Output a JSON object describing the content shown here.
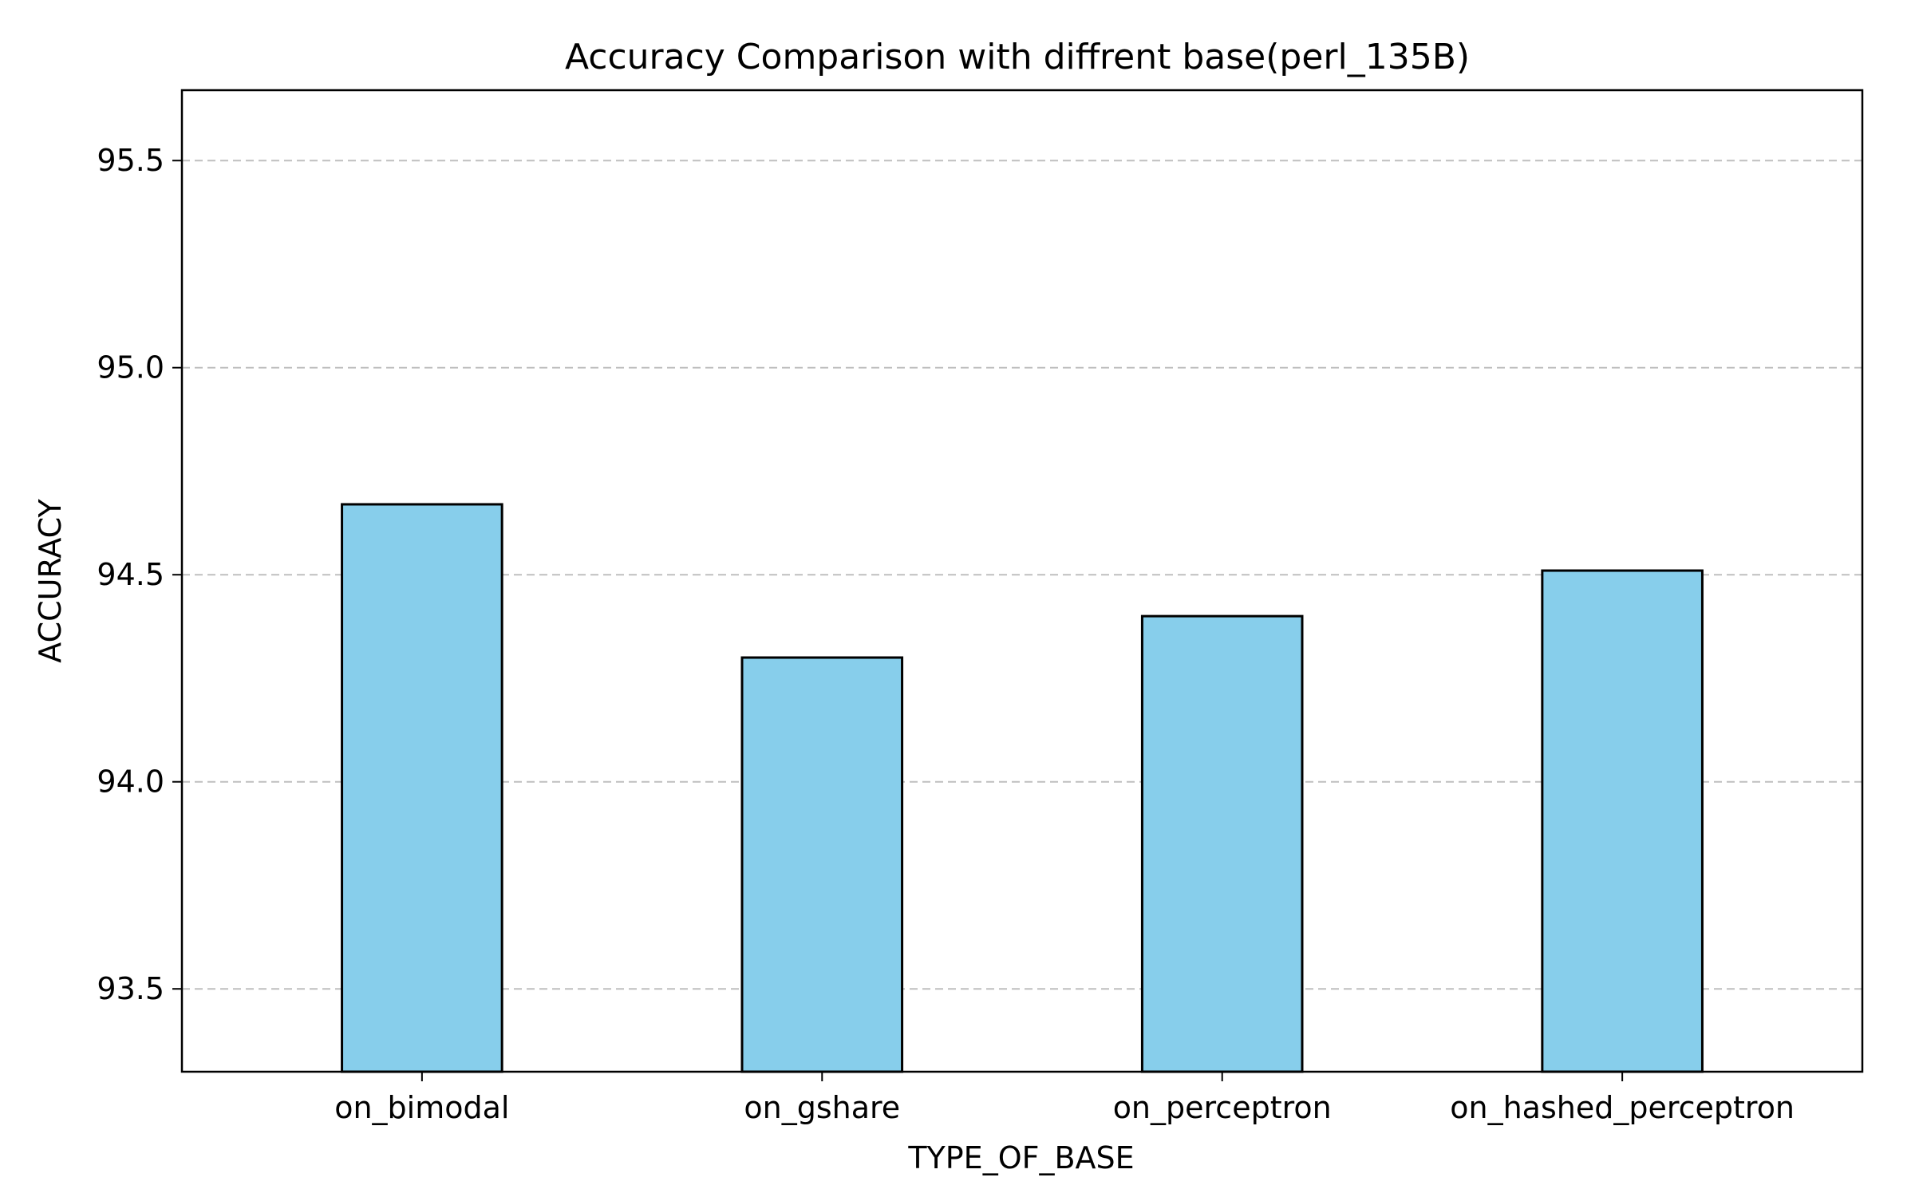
{
  "chart_data": {
    "type": "bar",
    "title": "Accuracy Comparison with diffrent base(perl_135B)",
    "xlabel": "TYPE_OF_BASE",
    "ylabel": "ACCURACY",
    "categories": [
      "on_bimodal",
      "on_gshare",
      "on_perceptron",
      "on_hashed_perceptron"
    ],
    "values": [
      94.67,
      94.3,
      94.4,
      94.51
    ],
    "ylim": [
      93.3,
      95.67
    ],
    "yticks": [
      93.5,
      94.0,
      94.5,
      95.0,
      95.5
    ],
    "ytick_labels": [
      "93.5",
      "94.0",
      "94.5",
      "95.0",
      "95.5"
    ],
    "grid": "y-dashed",
    "bar_color": "#87CEEB",
    "edge_color": "#000000",
    "grid_color": "#bfbfbf"
  }
}
